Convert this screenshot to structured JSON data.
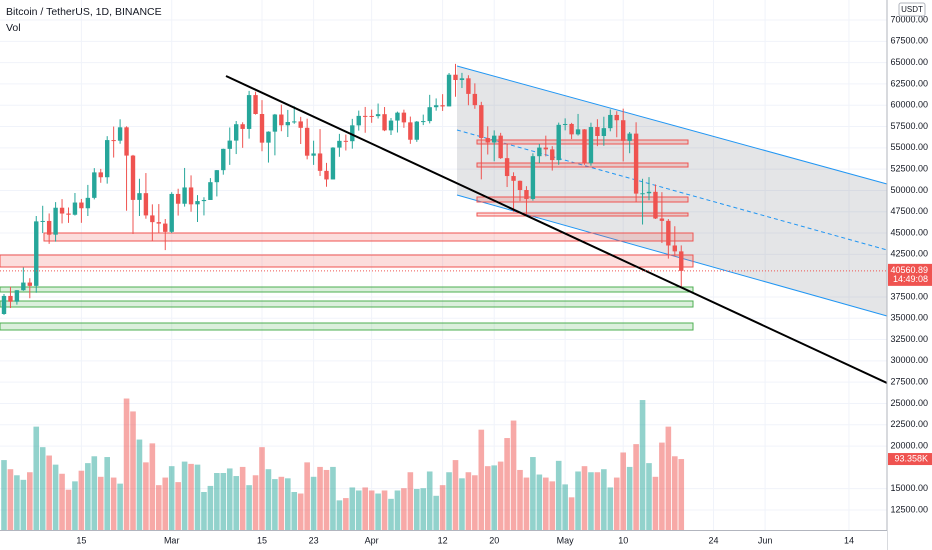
{
  "chart_data": {
    "type": "candlestick",
    "title": "Bitcoin / TetherUS, 1D, BINANCE",
    "currency": "USDT",
    "countdown": "14:49:08",
    "ylim": [
      10150,
      72350
    ],
    "yticks": [
      {
        "value": 70000,
        "label": "70000.00"
      },
      {
        "value": 67500,
        "label": "67500.00"
      },
      {
        "value": 65000,
        "label": "65000.00"
      },
      {
        "value": 62500,
        "label": "62500.00"
      },
      {
        "value": 60000,
        "label": "60000.00"
      },
      {
        "value": 57500,
        "label": "57500.00"
      },
      {
        "value": 55000,
        "label": "55000.00"
      },
      {
        "value": 52500,
        "label": "52500.00"
      },
      {
        "value": 50000,
        "label": "50000.00"
      },
      {
        "value": 47500,
        "label": "47500.00"
      },
      {
        "value": 45000,
        "label": "45000.00"
      },
      {
        "value": 42500,
        "label": "42500.00"
      },
      {
        "value": 37500,
        "label": "37500.00"
      },
      {
        "value": 35000,
        "label": "35000.00"
      },
      {
        "value": 32500,
        "label": "32500.00"
      },
      {
        "value": 30000,
        "label": "30000.00"
      },
      {
        "value": 27500,
        "label": "27500.00"
      },
      {
        "value": 25000,
        "label": "25000.00"
      },
      {
        "value": 22500,
        "label": "22500.00"
      },
      {
        "value": 20000,
        "label": "20000.00"
      },
      {
        "value": 15000,
        "label": "15000.00"
      },
      {
        "value": 12500,
        "label": "12500.00"
      }
    ],
    "xticks": [
      {
        "value": "Feb 15",
        "label": "15"
      },
      {
        "value": "Mar 1",
        "label": "Mar"
      },
      {
        "value": "Mar 15",
        "label": "15"
      },
      {
        "value": "Mar 23",
        "label": "23"
      },
      {
        "value": "Apr 1",
        "label": "Apr"
      },
      {
        "value": "Apr 12",
        "label": "12"
      },
      {
        "value": "Apr 20",
        "label": "20"
      },
      {
        "value": "May 1",
        "label": "May"
      },
      {
        "value": "May 10",
        "label": "10"
      },
      {
        "value": "May 24",
        "label": "24"
      },
      {
        "value": "Jun 1",
        "label": "Jun"
      },
      {
        "value": "Jun 14",
        "label": "14"
      }
    ],
    "up_color": "#26a69a",
    "down_color": "#ef5350",
    "x": [
      "Feb 3",
      "Feb 4",
      "Feb 5",
      "Feb 6",
      "Feb 7",
      "Feb 8",
      "Feb 9",
      "Feb 10",
      "Feb 11",
      "Feb 12",
      "Feb 13",
      "Feb 14",
      "Feb 15",
      "Feb 16",
      "Feb 17",
      "Feb 18",
      "Feb 19",
      "Feb 20",
      "Feb 21",
      "Feb 22",
      "Feb 23",
      "Feb 24",
      "Feb 25",
      "Feb 26",
      "Feb 27",
      "Feb 28",
      "Mar 1",
      "Mar 2",
      "Mar 3",
      "Mar 4",
      "Mar 5",
      "Mar 6",
      "Mar 7",
      "Mar 8",
      "Mar 9",
      "Mar 10",
      "Mar 11",
      "Mar 12",
      "Mar 13",
      "Mar 14",
      "Mar 15",
      "Mar 16",
      "Mar 17",
      "Mar 18",
      "Mar 19",
      "Mar 20",
      "Mar 21",
      "Mar 22",
      "Mar 23",
      "Mar 24",
      "Mar 25",
      "Mar 26",
      "Mar 27",
      "Mar 28",
      "Mar 29",
      "Mar 30",
      "Mar 31",
      "Apr 1",
      "Apr 2",
      "Apr 3",
      "Apr 4",
      "Apr 5",
      "Apr 6",
      "Apr 7",
      "Apr 8",
      "Apr 9",
      "Apr 10",
      "Apr 11",
      "Apr 12",
      "Apr 13",
      "Apr 14",
      "Apr 15",
      "Apr 16",
      "Apr 17",
      "Apr 18",
      "Apr 19",
      "Apr 20",
      "Apr 21",
      "Apr 22",
      "Apr 23",
      "Apr 24",
      "Apr 25",
      "Apr 26",
      "Apr 27",
      "Apr 28",
      "Apr 29",
      "Apr 30",
      "May 1",
      "May 2",
      "May 3",
      "May 4",
      "May 5",
      "May 6",
      "May 7",
      "May 8",
      "May 9",
      "May 10",
      "May 11",
      "May 12",
      "May 13",
      "May 14",
      "May 15",
      "May 16",
      "May 17",
      "May 18",
      "May 19"
    ],
    "candles": [
      [
        35500,
        37850,
        35400,
        37620
      ],
      [
        37620,
        38700,
        36200,
        36940
      ],
      [
        36940,
        38300,
        36600,
        38290
      ],
      [
        38290,
        40950,
        38220,
        39190
      ],
      [
        39190,
        39700,
        37350,
        38800
      ],
      [
        38800,
        47000,
        37990,
        46370
      ],
      [
        46370,
        48200,
        45000,
        46420
      ],
      [
        46420,
        47300,
        43730,
        44810
      ],
      [
        44810,
        48630,
        43990,
        47970
      ],
      [
        47970,
        48980,
        46130,
        47290
      ],
      [
        47290,
        48000,
        46200,
        47150
      ],
      [
        47150,
        49700,
        47050,
        48580
      ],
      [
        48580,
        49000,
        46200,
        47910
      ],
      [
        47910,
        50650,
        47000,
        49130
      ],
      [
        49130,
        52620,
        48950,
        52120
      ],
      [
        52120,
        52530,
        50900,
        51550
      ],
      [
        51550,
        56370,
        50800,
        55910
      ],
      [
        55910,
        57500,
        53860,
        55840
      ],
      [
        55840,
        58350,
        55480,
        57410
      ],
      [
        57410,
        57530,
        47620,
        54090
      ],
      [
        54090,
        54180,
        44890,
        48890
      ],
      [
        48890,
        51370,
        47000,
        49680
      ],
      [
        49680,
        52040,
        46680,
        47070
      ],
      [
        47070,
        48370,
        44110,
        46280
      ],
      [
        46280,
        48400,
        45000,
        46110
      ],
      [
        46110,
        46650,
        43000,
        45140
      ],
      [
        45140,
        49790,
        45000,
        49590
      ],
      [
        49590,
        50200,
        47050,
        48440
      ],
      [
        48440,
        52640,
        48100,
        50350
      ],
      [
        50350,
        51770,
        47500,
        48370
      ],
      [
        48370,
        49450,
        46300,
        48750
      ],
      [
        48750,
        49200,
        47070,
        48880
      ],
      [
        48880,
        51450,
        48880,
        50970
      ],
      [
        50970,
        52400,
        49300,
        52380
      ],
      [
        52380,
        54900,
        51850,
        54880
      ],
      [
        54880,
        57390,
        53000,
        55850
      ],
      [
        55850,
        58150,
        54270,
        57770
      ],
      [
        57770,
        58000,
        55000,
        57220
      ],
      [
        57220,
        61680,
        56080,
        61190
      ],
      [
        61190,
        61600,
        58900,
        58970
      ],
      [
        58970,
        60600,
        54600,
        55610
      ],
      [
        55610,
        56940,
        53270,
        56900
      ],
      [
        56900,
        58980,
        54120,
        58910
      ],
      [
        58910,
        60070,
        56950,
        57650
      ],
      [
        57650,
        59450,
        56270,
        58030
      ],
      [
        58030,
        59880,
        57820,
        58100
      ],
      [
        58100,
        58640,
        55450,
        57350
      ],
      [
        57350,
        58420,
        53650,
        54080
      ],
      [
        54080,
        55840,
        53000,
        54340
      ],
      [
        54340,
        57200,
        51700,
        52300
      ],
      [
        52300,
        53240,
        50430,
        51290
      ],
      [
        51290,
        55080,
        51290,
        55030
      ],
      [
        55030,
        56640,
        53950,
        55820
      ],
      [
        55820,
        56560,
        54690,
        55780
      ],
      [
        55780,
        58400,
        54900,
        57640
      ],
      [
        57640,
        59370,
        57020,
        58750
      ],
      [
        58750,
        59800,
        56770,
        58740
      ],
      [
        58740,
        59490,
        57940,
        58720
      ],
      [
        58720,
        60200,
        58440,
        58950
      ],
      [
        58950,
        59790,
        56960,
        57050
      ],
      [
        57050,
        58500,
        56500,
        58200
      ],
      [
        58200,
        59250,
        56800,
        59130
      ],
      [
        59130,
        59480,
        57350,
        57990
      ],
      [
        57990,
        58670,
        55470,
        55950
      ],
      [
        55950,
        58150,
        55700,
        58080
      ],
      [
        58080,
        58900,
        57670,
        58140
      ],
      [
        58140,
        61220,
        57870,
        59770
      ],
      [
        59770,
        60800,
        59360,
        60000
      ],
      [
        60000,
        61300,
        59330,
        59860
      ],
      [
        59860,
        63780,
        59860,
        63580
      ],
      [
        63580,
        64850,
        61000,
        62960
      ],
      [
        62960,
        63800,
        62020,
        63160
      ],
      [
        63160,
        63520,
        60000,
        61330
      ],
      [
        61330,
        62570,
        59580,
        60010
      ],
      [
        60010,
        60400,
        51300,
        56150
      ],
      [
        56150,
        57530,
        54220,
        55630
      ],
      [
        55630,
        57050,
        53420,
        56430
      ],
      [
        56430,
        56760,
        53700,
        53790
      ],
      [
        53790,
        55520,
        50400,
        51690
      ],
      [
        51690,
        52130,
        47500,
        51130
      ],
      [
        51130,
        51170,
        48750,
        50050
      ],
      [
        50050,
        50500,
        47000,
        49000
      ],
      [
        49000,
        54360,
        48800,
        54020
      ],
      [
        54020,
        55460,
        53220,
        55030
      ],
      [
        55030,
        56430,
        54000,
        54820
      ],
      [
        54820,
        55200,
        52330,
        53560
      ],
      [
        53560,
        57960,
        53010,
        57700
      ],
      [
        57700,
        58460,
        57050,
        57800
      ],
      [
        57800,
        57930,
        56030,
        56580
      ],
      [
        56580,
        58980,
        56440,
        57170
      ],
      [
        57170,
        57200,
        53010,
        53200
      ],
      [
        53200,
        57950,
        52900,
        57440
      ],
      [
        57440,
        58360,
        55200,
        56390
      ],
      [
        56390,
        58650,
        55240,
        57310
      ],
      [
        57310,
        59500,
        56940,
        58860
      ],
      [
        58860,
        59300,
        56240,
        58240
      ],
      [
        58240,
        59600,
        53400,
        55820
      ],
      [
        55820,
        56860,
        54370,
        56670
      ],
      [
        56670,
        58000,
        48600,
        49630
      ],
      [
        49630,
        51370,
        46000,
        49670
      ],
      [
        49670,
        51570,
        48850,
        49840
      ],
      [
        49840,
        50700,
        46650,
        46710
      ],
      [
        46710,
        49800,
        43830,
        46430
      ],
      [
        46430,
        46650,
        42000,
        43540
      ],
      [
        43540,
        45800,
        42260,
        42850
      ],
      [
        42850,
        43550,
        38600,
        40560.89
      ]
    ],
    "volume": {
      "name": "Vol",
      "values": [
        92000,
        80000,
        72000,
        66000,
        76000,
        136000,
        109000,
        98000,
        86000,
        74000,
        53000,
        64000,
        78000,
        88000,
        97000,
        70000,
        96000,
        69000,
        61000,
        173000,
        156000,
        119000,
        89000,
        114000,
        59000,
        69000,
        84000,
        63000,
        90000,
        87000,
        86000,
        50000,
        58000,
        75000,
        75000,
        81000,
        71000,
        83000,
        59000,
        72000,
        109000,
        80000,
        67000,
        70000,
        68000,
        50000,
        48000,
        89000,
        70000,
        83000,
        79000,
        83000,
        39000,
        42000,
        56000,
        52000,
        56000,
        52000,
        48000,
        52000,
        41000,
        52000,
        55000,
        76000,
        54000,
        55000,
        77000,
        45000,
        59000,
        76000,
        92000,
        68000,
        76000,
        72000,
        132000,
        84000,
        85000,
        90000,
        121000,
        144000,
        79000,
        69000,
        96000,
        73000,
        69000,
        64000,
        91000,
        60000,
        43000,
        77000,
        84000,
        76000,
        76000,
        80000,
        56000,
        69000,
        102000,
        83000,
        113000,
        171000,
        88000,
        70000,
        115000,
        136000,
        97000,
        93358
      ],
      "value_labels": [
        null,
        null,
        null,
        null,
        null,
        null,
        null,
        null,
        null,
        null,
        null,
        null,
        null,
        null,
        null,
        null,
        null,
        null,
        null,
        null,
        null,
        null,
        null,
        null,
        null,
        null,
        null,
        null,
        null,
        null,
        null,
        null,
        null,
        null,
        null,
        null,
        null,
        null,
        null,
        null,
        null,
        null,
        null,
        null,
        null,
        null,
        null,
        null,
        null,
        null,
        null,
        null,
        null,
        null,
        null,
        null,
        null,
        null,
        null,
        null,
        null,
        null,
        null,
        null,
        null,
        null,
        null,
        null,
        null,
        null,
        null,
        null,
        null,
        null,
        null,
        null,
        null,
        null,
        null,
        null,
        null,
        null,
        null,
        null,
        null,
        null,
        null,
        null,
        null,
        null,
        null,
        null,
        null,
        null,
        null,
        null,
        null,
        null,
        null,
        null,
        null,
        null,
        null,
        null,
        null,
        "93.358K"
      ]
    }
  }
}
